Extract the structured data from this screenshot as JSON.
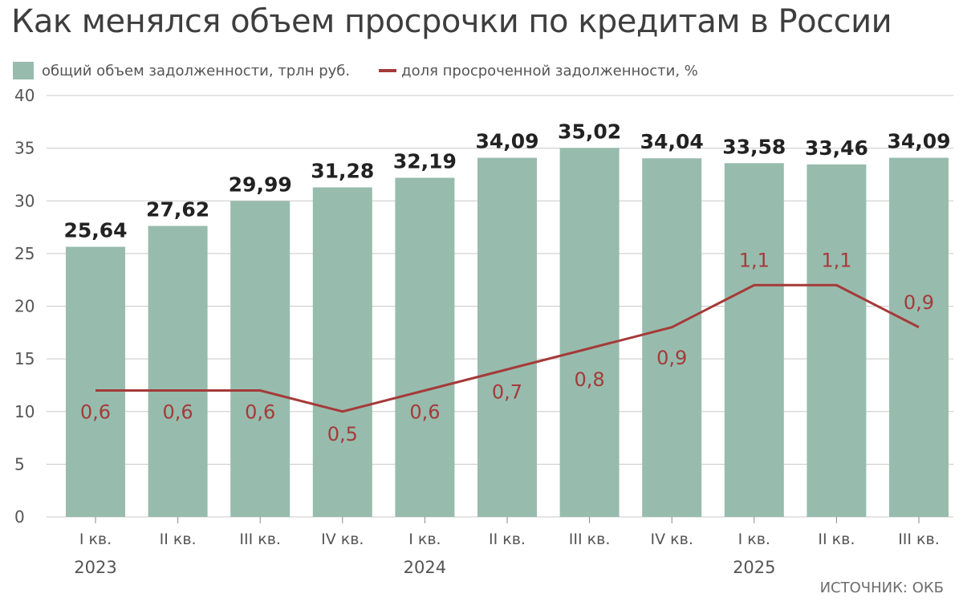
{
  "title": "Как менялся объем просрочки по кредитам в России",
  "legend": {
    "bars_label": "общий объем задолженности, трлн руб.",
    "line_label": "доля просроченной задолженности, %"
  },
  "source": "ИСТОЧНИК: ОКБ",
  "colors": {
    "bar": "#97bcad",
    "line": "#a53a3a",
    "grid": "#c9c9c9"
  },
  "chart_data": {
    "type": "bar",
    "categories": [
      "I кв.",
      "II кв.",
      "III кв.",
      "IV кв.",
      "I кв.",
      "II кв.",
      "III кв.",
      "IV кв.",
      "I кв.",
      "II кв.",
      "III кв."
    ],
    "years": [
      {
        "label": "2023",
        "category_index": 0
      },
      {
        "label": "2024",
        "category_index": 4
      },
      {
        "label": "2025",
        "category_index": 8
      }
    ],
    "series": [
      {
        "name": "общий объем задолженности, трлн руб.",
        "type": "bar",
        "values": [
          25.64,
          27.62,
          29.99,
          31.28,
          32.19,
          34.09,
          35.02,
          34.04,
          33.58,
          33.46,
          34.09
        ],
        "labels": [
          "25,64",
          "27,62",
          "29,99",
          "31,28",
          "32,19",
          "34,09",
          "35,02",
          "34,04",
          "33,58",
          "33,46",
          "34,09"
        ]
      },
      {
        "name": "доля просроченной задолженности, %",
        "type": "line",
        "values": [
          0.6,
          0.6,
          0.6,
          0.5,
          0.6,
          0.7,
          0.8,
          0.9,
          1.1,
          1.1,
          0.9
        ],
        "labels": [
          "0,6",
          "0,6",
          "0,6",
          "0,5",
          "0,6",
          "0,7",
          "0,8",
          "0,9",
          "1,1",
          "1,1",
          "0,9"
        ]
      }
    ],
    "ylim": [
      0,
      40
    ],
    "yticks": [
      0,
      5,
      10,
      15,
      20,
      25,
      30,
      35,
      40
    ],
    "grid": true,
    "legend_position": "top-left"
  }
}
